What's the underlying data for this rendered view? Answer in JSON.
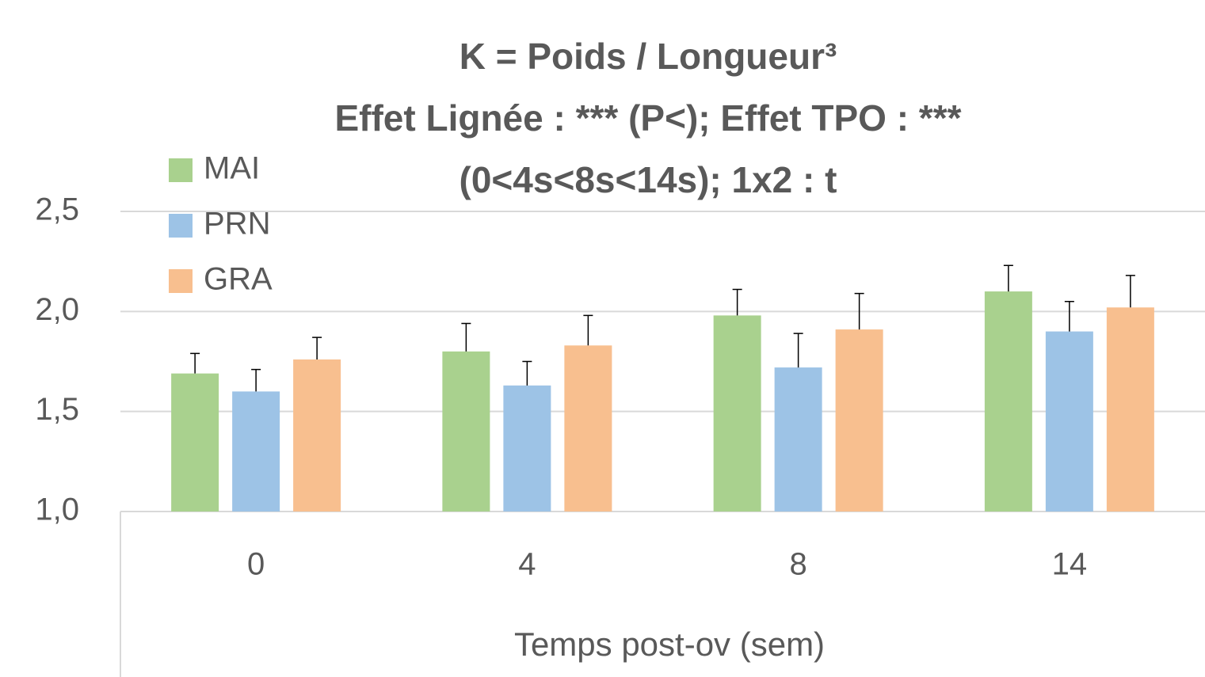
{
  "chart_data": {
    "type": "bar",
    "title": [
      "K = Poids / Longueur³",
      "Effet Lignée : *** (P<); Effet TPO : ***",
      "(0<4s<8s<14s); 1x2 : t"
    ],
    "x_label": "Temps post-ov (sem)",
    "categories": [
      "0",
      "4",
      "8",
      "14"
    ],
    "series": [
      {
        "name": "MAI",
        "color": "#a9d18e",
        "values": [
          1.69,
          1.8,
          1.98,
          2.1
        ],
        "errors": [
          0.1,
          0.14,
          0.13,
          0.13
        ]
      },
      {
        "name": "PRN",
        "color": "#9dc3e6",
        "values": [
          1.6,
          1.63,
          1.72,
          1.9
        ],
        "errors": [
          0.11,
          0.12,
          0.17,
          0.15
        ]
      },
      {
        "name": "GRA",
        "color": "#f8bf8f",
        "values": [
          1.76,
          1.83,
          1.91,
          2.02
        ],
        "errors": [
          0.11,
          0.15,
          0.18,
          0.16
        ]
      }
    ],
    "ylim": [
      1,
      2.5
    ],
    "yticks": [
      {
        "value": 1,
        "label": "1,0"
      },
      {
        "value": 1.5,
        "label": "1,5"
      },
      {
        "value": 2,
        "label": "2,0"
      },
      {
        "value": 2.5,
        "label": "2,5"
      }
    ],
    "grid": true,
    "legend": "top-left"
  }
}
